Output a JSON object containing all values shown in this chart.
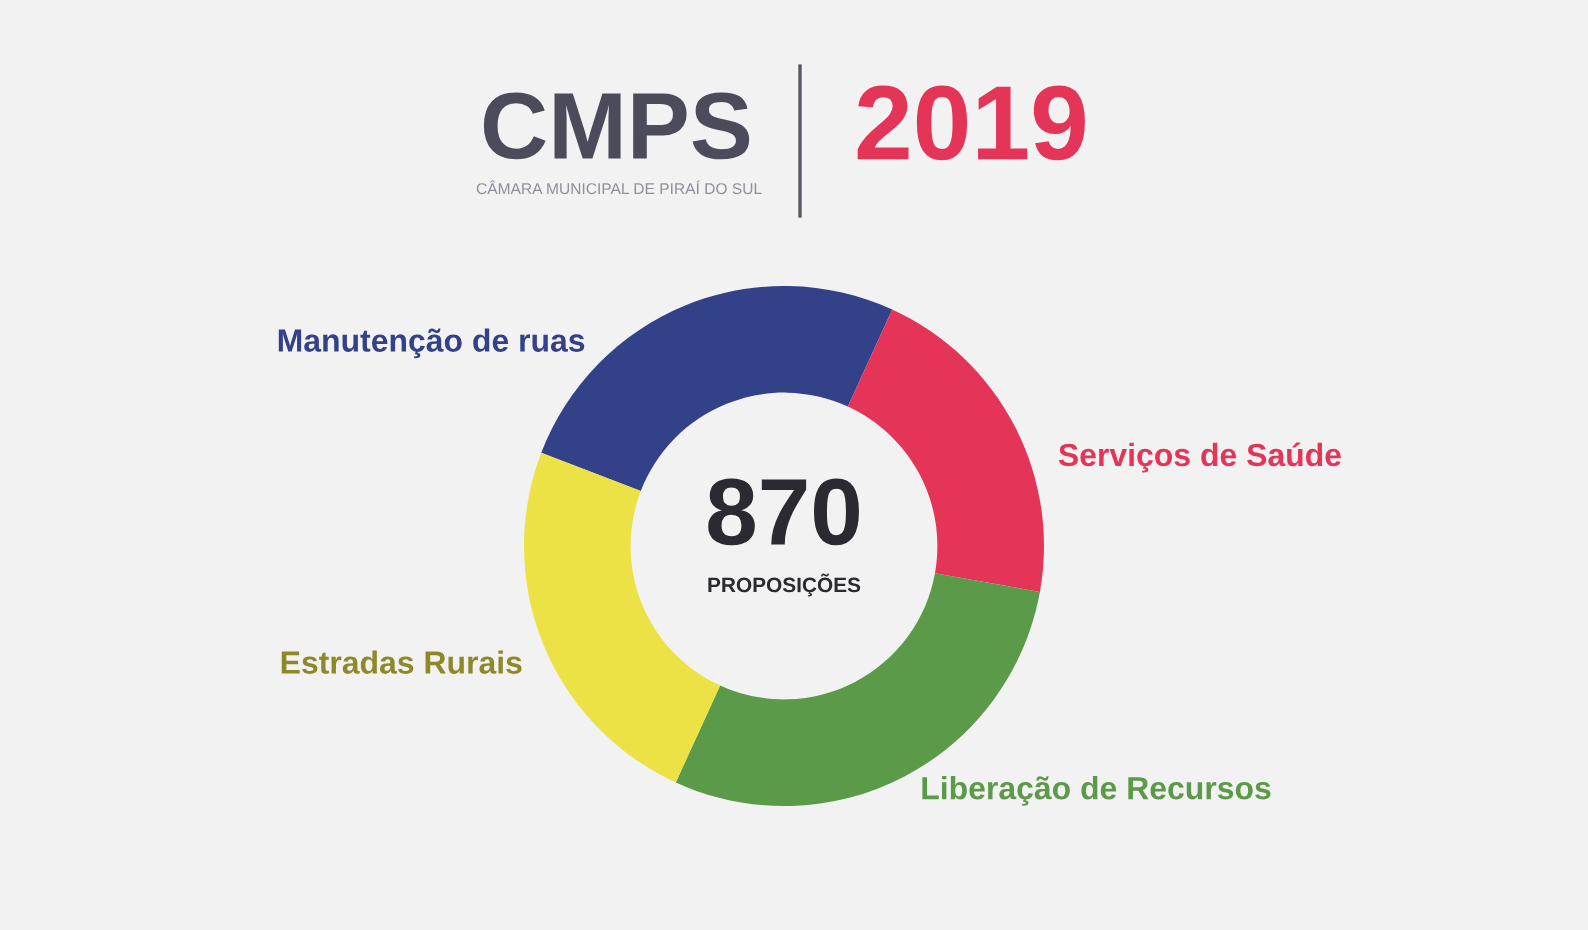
{
  "chart_data": {
    "type": "donut",
    "title": "CMPS",
    "subtitle": "CÂMARA MUNICIPAL DE PIRAÍ DO SUL",
    "annotations": [
      "2019",
      "870",
      "PROPOSIÇÕES"
    ],
    "categories": [
      "Manutenção de ruas",
      "Serviços de Saúde",
      "Liberação de Recursos",
      "Estradas Rurais"
    ],
    "values": [
      26,
      21,
      29,
      24
    ],
    "colors": [
      "#334189",
      "#e43458",
      "#5a9a48",
      "#ede245"
    ]
  }
}
